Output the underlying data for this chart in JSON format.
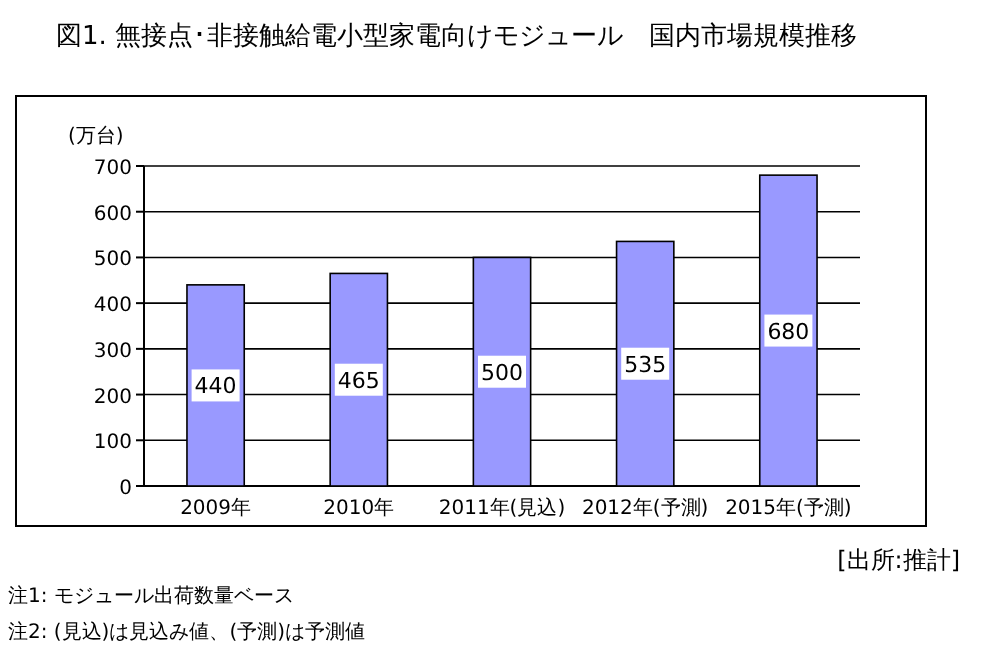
{
  "chart_data": {
    "type": "bar",
    "title": "図1. 無接点･非接触給電小型家電向けモジュール　国内市場規模推移",
    "ylabel": "(万台)",
    "categories": [
      "2009年",
      "2010年",
      "2011年(見込)",
      "2012年(予測)",
      "2015年(予測)"
    ],
    "values": [
      440,
      465,
      500,
      535,
      680
    ],
    "color": "#9999ff",
    "ylim": [
      0,
      700
    ],
    "yticks": [
      0,
      100,
      200,
      300,
      400,
      500,
      600,
      700
    ],
    "grid": "y",
    "data_labels": true,
    "annotations": [
      "[出所:推計]",
      "注1: モジュール出荷数量ベース",
      "注2: (見込)は見込み値、(予測)は予測値"
    ]
  }
}
